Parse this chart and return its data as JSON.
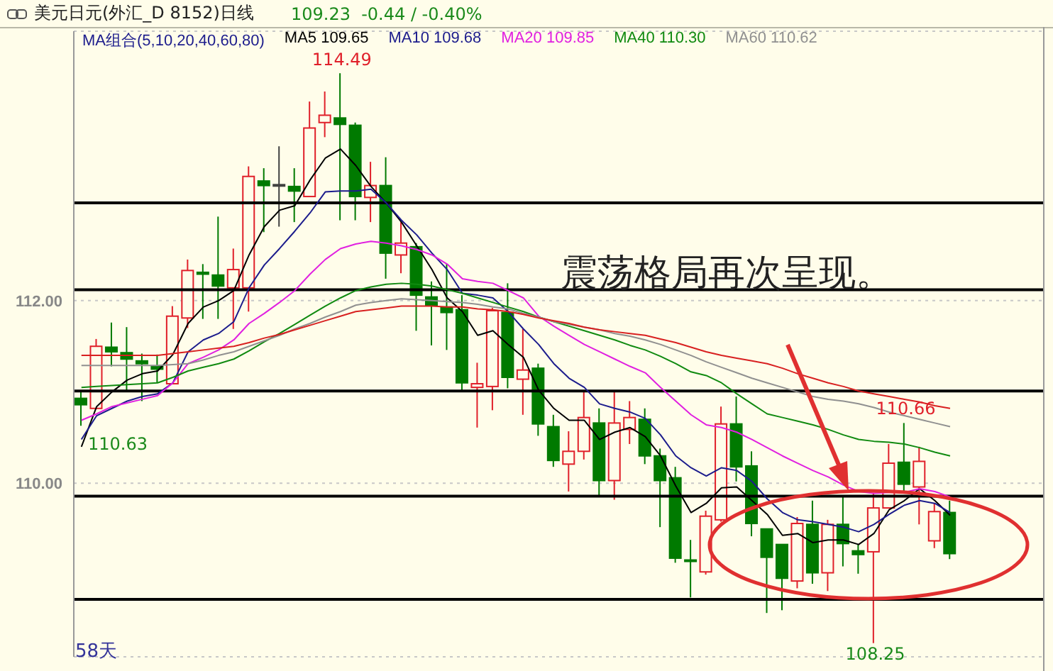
{
  "chart_data": {
    "type": "candlestick",
    "title": "美元日元(外汇_D 8152)日线",
    "subtitle": "109.23  -0.44 / -0.40%",
    "legend_title": "MA组合(5,10,20,40,60,80)",
    "categories": [
      null,
      null,
      null,
      null,
      null,
      null,
      null,
      null,
      null,
      null,
      null,
      null,
      null,
      null,
      null,
      null,
      null,
      null,
      null,
      null,
      null,
      null,
      null,
      null,
      null,
      null,
      null,
      null,
      null,
      null,
      null,
      null,
      null,
      null,
      null,
      null,
      null,
      null,
      null,
      null,
      null,
      null,
      null,
      null,
      null,
      null,
      null,
      null,
      null,
      null,
      null,
      null,
      null,
      null,
      null,
      null,
      null,
      null
    ],
    "ohlc": [
      [
        110.93,
        111.0,
        110.63,
        110.86
      ],
      [
        110.82,
        111.58,
        110.81,
        111.5
      ],
      [
        111.49,
        111.76,
        111.28,
        111.44
      ],
      [
        111.43,
        111.71,
        111.02,
        111.36
      ],
      [
        111.34,
        111.42,
        110.9,
        111.31
      ],
      [
        111.28,
        111.41,
        111.1,
        111.25
      ],
      [
        111.09,
        111.94,
        111.09,
        111.83
      ],
      [
        111.81,
        112.45,
        111.7,
        112.33
      ],
      [
        112.31,
        112.4,
        111.8,
        112.29
      ],
      [
        112.28,
        112.92,
        111.8,
        112.16
      ],
      [
        112.14,
        112.57,
        111.69,
        112.34
      ],
      [
        112.14,
        113.47,
        111.88,
        113.36
      ],
      [
        113.31,
        113.45,
        112.75,
        113.26
      ],
      [
        113.27,
        113.69,
        112.81,
        113.27
      ],
      [
        113.25,
        113.45,
        112.86,
        113.2
      ],
      [
        113.14,
        114.18,
        113.14,
        113.89
      ],
      [
        113.95,
        114.29,
        113.79,
        114.03
      ],
      [
        114.0,
        114.49,
        112.88,
        113.93
      ],
      [
        113.92,
        113.95,
        112.88,
        113.14
      ],
      [
        113.13,
        113.52,
        112.86,
        113.26
      ],
      [
        113.26,
        113.57,
        112.24,
        112.52
      ],
      [
        112.5,
        112.86,
        112.3,
        112.63
      ],
      [
        112.59,
        112.63,
        111.67,
        112.06
      ],
      [
        112.04,
        112.21,
        111.51,
        111.95
      ],
      [
        111.93,
        112.4,
        111.46,
        111.87
      ],
      [
        111.9,
        112.06,
        111.0,
        111.1
      ],
      [
        111.05,
        111.32,
        110.61,
        111.09
      ],
      [
        111.06,
        111.92,
        110.8,
        111.89
      ],
      [
        111.87,
        112.19,
        111.04,
        111.16
      ],
      [
        111.14,
        111.69,
        110.75,
        111.24
      ],
      [
        111.26,
        111.31,
        110.52,
        110.65
      ],
      [
        110.62,
        110.75,
        110.18,
        110.25
      ],
      [
        110.21,
        110.57,
        109.91,
        110.35
      ],
      [
        110.35,
        111.0,
        110.26,
        110.72
      ],
      [
        110.66,
        110.82,
        109.85,
        110.03
      ],
      [
        110.03,
        111.02,
        109.82,
        110.66
      ],
      [
        110.59,
        110.9,
        110.43,
        110.72
      ],
      [
        110.7,
        110.82,
        110.21,
        110.3
      ],
      [
        110.3,
        110.38,
        109.52,
        110.03
      ],
      [
        110.06,
        110.18,
        109.13,
        109.18
      ],
      [
        109.16,
        109.38,
        108.75,
        109.16
      ],
      [
        109.03,
        109.7,
        109.0,
        109.64
      ],
      [
        109.6,
        110.84,
        109.58,
        110.65
      ],
      [
        110.65,
        110.95,
        110.02,
        110.18
      ],
      [
        110.19,
        110.35,
        109.42,
        109.56
      ],
      [
        109.5,
        109.5,
        108.58,
        109.19
      ],
      [
        109.33,
        109.33,
        108.61,
        108.96
      ],
      [
        108.93,
        109.63,
        108.85,
        109.56
      ],
      [
        109.55,
        109.81,
        108.9,
        109.02
      ],
      [
        109.02,
        109.6,
        108.82,
        109.55
      ],
      [
        109.55,
        109.87,
        109.09,
        109.34
      ],
      [
        109.26,
        109.33,
        109.01,
        109.22
      ],
      [
        109.25,
        109.89,
        108.25,
        109.73
      ],
      [
        109.73,
        110.43,
        109.73,
        110.22
      ],
      [
        110.23,
        110.66,
        109.91,
        109.99
      ],
      [
        109.96,
        110.4,
        109.55,
        110.24
      ],
      [
        109.37,
        109.78,
        109.29,
        109.69
      ],
      [
        109.68,
        109.81,
        109.17,
        109.23
      ]
    ],
    "colors": [
      "#007a00",
      "#e0202a",
      "#007a00",
      "#007a00",
      "#007a00",
      "#007a00",
      "#e0202a",
      "#e0202a",
      "#007a00",
      "#007a00",
      "#e0202a",
      "#e0202a",
      "#007a00",
      "#404040",
      "#007a00",
      "#e0202a",
      "#e0202a",
      "#007a00",
      "#007a00",
      "#e0202a",
      "#007a00",
      "#e0202a",
      "#007a00",
      "#007a00",
      "#007a00",
      "#007a00",
      "#e0202a",
      "#e0202a",
      "#007a00",
      "#e0202a",
      "#007a00",
      "#007a00",
      "#e0202a",
      "#e0202a",
      "#007a00",
      "#e0202a",
      "#e0202a",
      "#007a00",
      "#007a00",
      "#007a00",
      "#007a00",
      "#e0202a",
      "#e0202a",
      "#007a00",
      "#007a00",
      "#007a00",
      "#007a00",
      "#e0202a",
      "#007a00",
      "#e0202a",
      "#007a00",
      "#007a00",
      "#e0202a",
      "#e0202a",
      "#007a00",
      "#e0202a",
      "#e0202a",
      "#007a00"
    ],
    "series": [
      {
        "type": "line",
        "name": "MA5 109.65",
        "color": "#000000",
        "values": [
          110.4,
          110.84,
          111.0,
          111.13,
          111.2,
          111.23,
          111.41,
          111.75,
          111.93,
          112.0,
          112.11,
          112.5,
          112.81,
          112.99,
          113.04,
          113.32,
          113.56,
          113.66,
          113.48,
          113.25,
          113.07,
          112.86,
          112.6,
          112.34,
          112.03,
          111.88,
          111.62,
          111.67,
          111.52,
          111.38,
          111.02,
          110.82,
          110.69,
          110.69,
          110.48,
          110.56,
          110.61,
          110.51,
          110.3,
          109.97,
          109.68,
          109.78,
          109.95,
          109.96,
          109.81,
          109.66,
          109.43,
          109.45,
          109.35,
          109.38,
          109.38,
          109.33,
          109.45,
          109.71,
          109.81,
          109.94,
          109.81,
          109.65
        ]
      },
      {
        "type": "line",
        "name": "MA10 109.68",
        "color": "#1c1c8c",
        "values": [
          110.48,
          110.74,
          110.82,
          110.9,
          110.95,
          110.98,
          111.1,
          111.44,
          111.57,
          111.64,
          111.77,
          112.14,
          112.39,
          112.57,
          112.76,
          112.96,
          113.19,
          113.2,
          113.2,
          113.22,
          113.07,
          112.88,
          112.72,
          112.52,
          112.34,
          112.08,
          112.06,
          112.03,
          111.88,
          111.69,
          111.52,
          111.31,
          111.15,
          111.05,
          110.87,
          110.82,
          110.78,
          110.71,
          110.53,
          110.3,
          110.17,
          110.08,
          110.17,
          110.14,
          110.02,
          109.83,
          109.68,
          109.6,
          109.58,
          109.55,
          109.52,
          109.47,
          109.55,
          109.66,
          109.76,
          109.81,
          109.78,
          109.68
        ]
      },
      {
        "type": "line",
        "name": "MA20 109.85",
        "color": "#e020e0",
        "values": [
          110.69,
          110.76,
          110.84,
          110.88,
          110.92,
          110.96,
          111.1,
          111.31,
          111.38,
          111.46,
          111.57,
          111.75,
          111.86,
          111.98,
          112.11,
          112.29,
          112.45,
          112.57,
          112.62,
          112.65,
          112.63,
          112.6,
          112.56,
          112.5,
          112.4,
          112.24,
          112.21,
          112.19,
          112.11,
          112.03,
          111.83,
          111.72,
          111.62,
          111.52,
          111.44,
          111.36,
          111.28,
          111.21,
          111.05,
          110.9,
          110.75,
          110.64,
          110.61,
          110.56,
          110.48,
          110.39,
          110.3,
          110.22,
          110.14,
          110.07,
          109.98,
          109.91,
          109.89,
          109.9,
          109.9,
          109.94,
          109.91,
          109.85
        ]
      },
      {
        "type": "line",
        "name": "MA40 110.30",
        "color": "#108a10",
        "values": [
          111.05,
          111.06,
          111.07,
          111.08,
          111.09,
          111.1,
          111.16,
          111.23,
          111.27,
          111.31,
          111.36,
          111.45,
          111.55,
          111.64,
          111.74,
          111.84,
          111.94,
          112.03,
          112.11,
          112.15,
          112.18,
          112.19,
          112.18,
          112.16,
          112.12,
          112.08,
          112.03,
          111.98,
          111.93,
          111.88,
          111.82,
          111.77,
          111.72,
          111.67,
          111.62,
          111.57,
          111.51,
          111.46,
          111.39,
          111.31,
          111.22,
          111.18,
          111.1,
          110.98,
          110.87,
          110.76,
          110.72,
          110.68,
          110.64,
          110.59,
          110.53,
          110.48,
          110.46,
          110.45,
          110.43,
          110.39,
          110.34,
          110.3
        ]
      },
      {
        "type": "line",
        "name": "MA60 110.62",
        "color": "#909090",
        "values": [
          111.29,
          111.29,
          111.29,
          111.29,
          111.29,
          111.29,
          111.3,
          111.31,
          111.35,
          111.4,
          111.44,
          111.5,
          111.56,
          111.62,
          111.69,
          111.75,
          111.82,
          111.88,
          111.95,
          111.98,
          112.0,
          112.02,
          112.01,
          112.0,
          111.99,
          111.98,
          111.96,
          111.93,
          111.91,
          111.86,
          111.82,
          111.77,
          111.74,
          111.71,
          111.68,
          111.64,
          111.61,
          111.57,
          111.52,
          111.46,
          111.4,
          111.33,
          111.27,
          111.21,
          111.15,
          111.1,
          111.05,
          111.0,
          110.95,
          110.92,
          110.9,
          110.87,
          110.83,
          110.78,
          110.74,
          110.7,
          110.66,
          110.62
        ]
      },
      {
        "type": "line",
        "color": "#d82020",
        "values": [
          111.4,
          111.4,
          111.4,
          111.4,
          111.4,
          111.4,
          111.42,
          111.44,
          111.46,
          111.48,
          111.5,
          111.54,
          111.59,
          111.63,
          111.68,
          111.73,
          111.78,
          111.83,
          111.88,
          111.9,
          111.92,
          111.94,
          111.94,
          111.94,
          111.93,
          111.93,
          111.91,
          111.9,
          111.88,
          111.85,
          111.81,
          111.78,
          111.75,
          111.71,
          111.68,
          111.66,
          111.64,
          111.62,
          111.58,
          111.54,
          111.49,
          111.44,
          111.4,
          111.37,
          111.34,
          111.31,
          111.26,
          111.2,
          111.15,
          111.1,
          111.06,
          111.01,
          110.98,
          110.95,
          110.92,
          110.89,
          110.85,
          110.82
        ]
      }
    ],
    "ylim": [
      108.1,
      114.95
    ],
    "yticks": [
      {
        "value": 110,
        "label": "110.00"
      },
      {
        "value": 112,
        "label": "112.00"
      }
    ],
    "grid": "y",
    "tick_labels": "y",
    "legend": "top",
    "ref_lines": [
      {
        "axis": "y",
        "value": 113.07,
        "color": "#000000"
      },
      {
        "axis": "y",
        "value": 112.12,
        "color": "#000000"
      },
      {
        "axis": "y",
        "value": 111.01,
        "color": "#000000"
      },
      {
        "axis": "y",
        "value": 109.86,
        "color": "#000000"
      },
      {
        "axis": "y",
        "value": 108.73,
        "color": "#000000"
      }
    ],
    "annotations": [
      {
        "text": "114.49",
        "y": 114.49
      },
      {
        "text": "110.66",
        "y": 110.66
      },
      {
        "text": "108.25",
        "y": 108.25
      },
      "110.63",
      "震荡格局再次呈现。",
      "58天"
    ]
  }
}
